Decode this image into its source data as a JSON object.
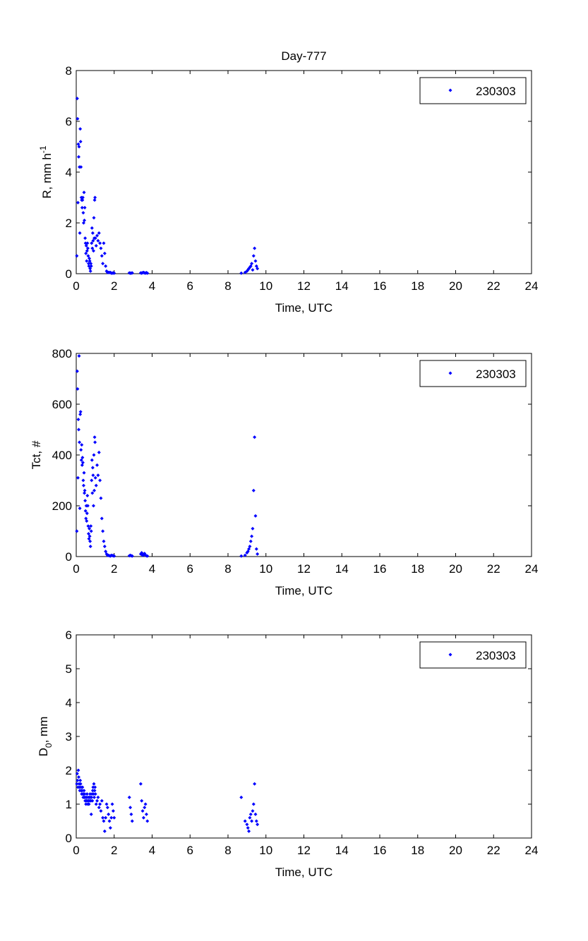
{
  "figure": {
    "title": "Day-777",
    "accent_color": "#0000ff"
  },
  "chart_data": [
    {
      "type": "scatter",
      "title": "Day-777",
      "xlabel": "Time, UTC",
      "ylabel_main": "R, mm h",
      "ylabel_sup": "-1",
      "ylabel_sub": "",
      "ylabel_tail": "",
      "xlim": [
        0,
        24
      ],
      "ylim": [
        0,
        8
      ],
      "xticks": [
        0,
        2,
        4,
        6,
        8,
        10,
        12,
        14,
        16,
        18,
        20,
        22,
        24
      ],
      "yticks": [
        0,
        2,
        4,
        6,
        8
      ],
      "legend": "230303",
      "legend_position": "top-right",
      "marker": "diamond",
      "color": "#0000ff",
      "series": [
        {
          "name": "230303",
          "x": [
            0.03,
            0.05,
            0.07,
            0.09,
            0.11,
            0.13,
            0.15,
            0.17,
            0.19,
            0.21,
            0.23,
            0.25,
            0.27,
            0.29,
            0.31,
            0.33,
            0.35,
            0.37,
            0.39,
            0.41,
            0.43,
            0.45,
            0.47,
            0.49,
            0.51,
            0.53,
            0.55,
            0.57,
            0.59,
            0.61,
            0.63,
            0.65,
            0.67,
            0.69,
            0.71,
            0.73,
            0.75,
            0.77,
            0.79,
            0.81,
            0.83,
            0.85,
            0.87,
            0.89,
            0.91,
            0.93,
            0.95,
            0.97,
            0.99,
            1.01,
            1.05,
            1.1,
            1.15,
            1.2,
            1.25,
            1.3,
            1.35,
            1.4,
            1.45,
            1.5,
            1.55,
            1.6,
            1.65,
            1.7,
            1.75,
            1.8,
            1.85,
            1.9,
            1.95,
            2.0,
            2.8,
            2.85,
            2.9,
            2.95,
            3.4,
            3.45,
            3.5,
            3.55,
            3.6,
            3.65,
            3.7,
            3.75,
            8.7,
            8.9,
            9.0,
            9.05,
            9.1,
            9.15,
            9.2,
            9.25,
            9.3,
            9.35,
            9.4,
            9.45,
            9.5,
            9.55
          ],
          "y": [
            0.7,
            6.9,
            6.1,
            2.8,
            5.1,
            4.6,
            5.0,
            4.2,
            1.6,
            5.7,
            5.2,
            4.2,
            3.0,
            2.9,
            2.6,
            2.9,
            3.0,
            2.4,
            2.0,
            3.2,
            2.1,
            2.6,
            1.4,
            1.2,
            0.8,
            1.1,
            0.5,
            0.9,
            1.2,
            1.0,
            0.7,
            0.4,
            0.3,
            0.6,
            0.5,
            0.2,
            0.1,
            0.4,
            0.3,
            1.2,
            1.8,
            1.0,
            1.6,
            1.3,
            0.9,
            2.2,
            1.4,
            2.9,
            3.0,
            1.4,
            1.1,
            1.5,
            1.3,
            1.6,
            1.2,
            1.0,
            0.7,
            0.4,
            1.2,
            0.8,
            0.3,
            0.1,
            0.05,
            0.05,
            0.05,
            0.05,
            0.02,
            0.02,
            0.03,
            0.02,
            0.03,
            0.02,
            0.02,
            0.03,
            0.03,
            0.02,
            0.04,
            0.05,
            0.03,
            0.02,
            0.04,
            0.02,
            0.02,
            0.05,
            0.1,
            0.15,
            0.2,
            0.25,
            0.3,
            0.4,
            0.15,
            0.7,
            1.0,
            0.5,
            0.3,
            0.2
          ]
        }
      ]
    },
    {
      "type": "scatter",
      "title": "",
      "xlabel": "Time, UTC",
      "ylabel_main": "Tct, #",
      "ylabel_sup": "",
      "ylabel_sub": "",
      "ylabel_tail": "",
      "xlim": [
        0,
        24
      ],
      "ylim": [
        0,
        800
      ],
      "xticks": [
        0,
        2,
        4,
        6,
        8,
        10,
        12,
        14,
        16,
        18,
        20,
        22,
        24
      ],
      "yticks": [
        0,
        200,
        400,
        600,
        800
      ],
      "legend": "230303",
      "legend_position": "top-right",
      "marker": "diamond",
      "color": "#0000ff",
      "series": [
        {
          "name": "230303",
          "x": [
            0.03,
            0.05,
            0.07,
            0.09,
            0.11,
            0.13,
            0.15,
            0.17,
            0.19,
            0.21,
            0.23,
            0.25,
            0.27,
            0.29,
            0.31,
            0.33,
            0.35,
            0.37,
            0.39,
            0.41,
            0.43,
            0.45,
            0.47,
            0.49,
            0.51,
            0.53,
            0.55,
            0.57,
            0.59,
            0.61,
            0.63,
            0.65,
            0.67,
            0.69,
            0.71,
            0.73,
            0.75,
            0.77,
            0.79,
            0.81,
            0.83,
            0.85,
            0.87,
            0.89,
            0.91,
            0.93,
            0.95,
            0.97,
            0.99,
            1.01,
            1.05,
            1.1,
            1.15,
            1.2,
            1.25,
            1.3,
            1.35,
            1.4,
            1.45,
            1.5,
            1.55,
            1.6,
            1.65,
            1.7,
            1.75,
            1.8,
            1.85,
            1.9,
            1.95,
            2.0,
            2.8,
            2.85,
            2.9,
            2.95,
            3.4,
            3.45,
            3.5,
            3.55,
            3.6,
            3.65,
            3.7,
            3.75,
            8.7,
            8.9,
            9.0,
            9.05,
            9.1,
            9.15,
            9.2,
            9.25,
            9.3,
            9.35,
            9.4,
            9.45,
            9.5,
            9.55
          ],
          "y": [
            100,
            730,
            660,
            310,
            540,
            500,
            790,
            450,
            190,
            560,
            570,
            420,
            380,
            440,
            360,
            390,
            370,
            300,
            280,
            330,
            250,
            260,
            220,
            180,
            150,
            200,
            140,
            170,
            240,
            200,
            120,
            90,
            70,
            110,
            80,
            60,
            40,
            120,
            100,
            300,
            380,
            250,
            350,
            320,
            200,
            400,
            260,
            470,
            450,
            310,
            280,
            360,
            320,
            410,
            300,
            230,
            150,
            100,
            60,
            40,
            20,
            10,
            5,
            5,
            3,
            2,
            5,
            4,
            3,
            2,
            3,
            5,
            3,
            2,
            10,
            15,
            5,
            8,
            12,
            5,
            3,
            2,
            2,
            5,
            15,
            20,
            30,
            40,
            60,
            80,
            110,
            260,
            470,
            160,
            30,
            10
          ]
        }
      ]
    },
    {
      "type": "scatter",
      "title": "",
      "xlabel": "Time, UTC",
      "ylabel_main": "D",
      "ylabel_sup": "",
      "ylabel_sub": "0",
      "ylabel_tail": ", mm",
      "xlim": [
        0,
        24
      ],
      "ylim": [
        0,
        6
      ],
      "xticks": [
        0,
        2,
        4,
        6,
        8,
        10,
        12,
        14,
        16,
        18,
        20,
        22,
        24
      ],
      "yticks": [
        0,
        1,
        2,
        3,
        4,
        5,
        6
      ],
      "legend": "230303",
      "legend_position": "top-right",
      "marker": "diamond",
      "color": "#0000ff",
      "series": [
        {
          "name": "230303",
          "x": [
            0.03,
            0.05,
            0.07,
            0.09,
            0.11,
            0.13,
            0.15,
            0.17,
            0.19,
            0.21,
            0.23,
            0.25,
            0.27,
            0.29,
            0.31,
            0.33,
            0.35,
            0.37,
            0.39,
            0.41,
            0.43,
            0.45,
            0.47,
            0.49,
            0.51,
            0.53,
            0.55,
            0.57,
            0.59,
            0.61,
            0.63,
            0.65,
            0.67,
            0.69,
            0.71,
            0.73,
            0.75,
            0.77,
            0.79,
            0.81,
            0.83,
            0.85,
            0.87,
            0.89,
            0.91,
            0.93,
            0.95,
            0.97,
            0.99,
            1.01,
            1.05,
            1.1,
            1.15,
            1.2,
            1.25,
            1.3,
            1.35,
            1.4,
            1.45,
            1.5,
            1.55,
            1.6,
            1.65,
            1.7,
            1.75,
            1.8,
            1.85,
            1.9,
            1.95,
            2.0,
            2.8,
            2.85,
            2.9,
            2.95,
            3.4,
            3.45,
            3.5,
            3.55,
            3.6,
            3.65,
            3.7,
            3.75,
            8.7,
            8.9,
            9.0,
            9.05,
            9.1,
            9.15,
            9.2,
            9.25,
            9.3,
            9.35,
            9.4,
            9.45,
            9.5,
            9.55
          ],
          "y": [
            1.6,
            1.9,
            1.7,
            1.5,
            2.0,
            1.8,
            1.6,
            1.5,
            1.4,
            1.7,
            1.6,
            1.5,
            1.4,
            1.3,
            1.4,
            1.5,
            1.3,
            1.2,
            1.3,
            1.4,
            1.2,
            1.3,
            1.1,
            1.2,
            1.0,
            1.1,
            1.2,
            1.3,
            1.1,
            1.0,
            1.2,
            1.1,
            1.0,
            1.2,
            1.1,
            1.3,
            1.2,
            1.1,
            0.7,
            1.2,
            1.3,
            1.1,
            1.4,
            1.5,
            1.3,
            1.6,
            1.2,
            1.4,
            1.5,
            1.3,
            1.0,
            1.1,
            1.2,
            0.9,
            1.0,
            0.8,
            1.1,
            0.6,
            0.5,
            0.2,
            0.6,
            1.0,
            0.9,
            0.7,
            0.5,
            0.3,
            0.6,
            1.0,
            0.8,
            0.6,
            1.2,
            0.9,
            0.7,
            0.5,
            1.6,
            1.1,
            0.8,
            0.6,
            0.9,
            1.0,
            0.7,
            0.5,
            1.2,
            0.5,
            0.4,
            0.3,
            0.2,
            0.6,
            0.7,
            0.5,
            0.8,
            1.0,
            1.6,
            0.7,
            0.5,
            0.4
          ]
        }
      ]
    }
  ]
}
